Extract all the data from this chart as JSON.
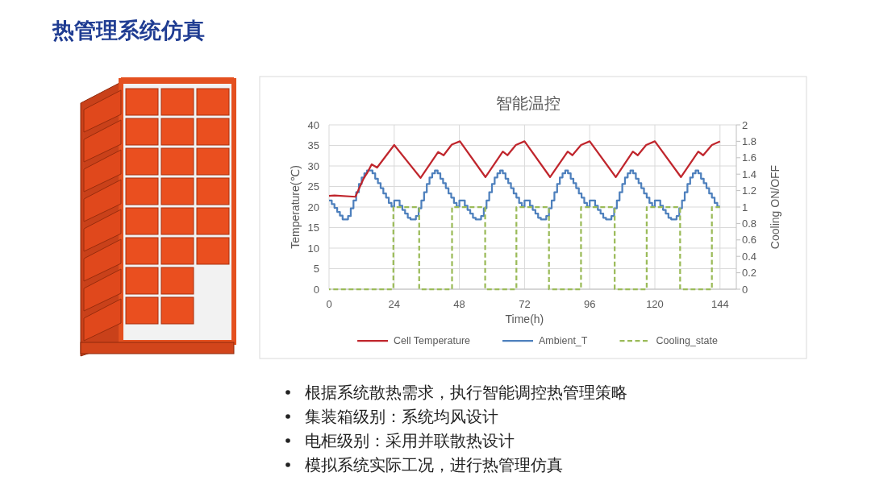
{
  "chart_data": {
    "type": "line",
    "title": "热管理系统仿真",
    "subtitle": "智能温控",
    "xlabel": "Time(h)",
    "ylabel": "Temperature(℃)",
    "y2label": "Cooling ON/OFF",
    "xlim": [
      0,
      150
    ],
    "xticks": [
      0,
      24,
      48,
      72,
      96,
      120,
      144
    ],
    "ylim": [
      0,
      40
    ],
    "yticks": [
      0,
      5,
      10,
      15,
      20,
      25,
      30,
      35,
      40
    ],
    "y2lim": [
      0,
      2
    ],
    "y2ticks": [
      0,
      0.2,
      0.4,
      0.6,
      0.8,
      1,
      1.2,
      1.4,
      1.6,
      1.8,
      2
    ],
    "grid": true,
    "legend": "bottom",
    "series": [
      {
        "name": "Cell Temperature",
        "color": "#c0262d",
        "type": "line",
        "x": [
          0,
          2,
          9.7,
          11.2,
          12.7,
          14.2,
          15.7,
          17.7,
          24,
          33.7,
          40.2,
          42.2,
          45.2,
          48.2,
          57.6,
          64.0,
          65.7,
          68.8,
          72,
          81.4,
          87.9,
          89.6,
          92.8,
          96,
          105.6,
          111.9,
          113.7,
          116.8,
          120,
          129.6,
          136.0,
          137.8,
          141.0,
          144
        ],
        "values": [
          22.7,
          22.8,
          22.5,
          24.7,
          26.9,
          28.5,
          30.4,
          29.6,
          35.1,
          27.1,
          33.4,
          32.6,
          35.2,
          36.0,
          27.3,
          33.5,
          32.6,
          35.1,
          36.0,
          27.3,
          33.5,
          32.6,
          35.1,
          36.0,
          27.3,
          33.5,
          32.6,
          35.1,
          36.0,
          27.3,
          33.5,
          32.6,
          35.1,
          36.0
        ]
      },
      {
        "name": "Ambient_T",
        "color": "#4e80bd",
        "type": "step",
        "x": [
          0,
          1,
          2,
          3,
          4,
          5,
          6,
          7,
          8,
          9,
          10,
          11,
          12,
          13,
          14,
          15,
          16,
          17,
          18,
          19,
          20,
          21,
          22,
          23,
          24,
          25,
          26,
          27,
          28,
          29,
          30,
          31,
          32,
          33,
          34,
          35,
          36,
          37,
          38,
          39,
          40,
          41,
          42,
          43,
          44,
          45,
          46,
          47,
          48,
          49,
          50,
          51,
          52,
          53,
          54,
          55,
          56,
          57,
          58,
          59,
          60,
          61,
          62,
          63,
          64,
          65,
          66,
          67,
          68,
          69,
          70,
          71,
          72,
          73,
          74,
          75,
          76,
          77,
          78,
          79,
          80,
          81,
          82,
          83,
          84,
          85,
          86,
          87,
          88,
          89,
          90,
          91,
          92,
          93,
          94,
          95,
          96,
          97,
          98,
          99,
          100,
          101,
          102,
          103,
          104,
          105,
          106,
          107,
          108,
          109,
          110,
          111,
          112,
          113,
          114,
          115,
          116,
          117,
          118,
          119,
          120,
          121,
          122,
          123,
          124,
          125,
          126,
          127,
          128,
          129,
          130,
          131,
          132,
          133,
          134,
          135,
          136,
          137,
          138,
          139,
          140,
          141,
          142,
          143,
          144
        ],
        "values": [
          21.6,
          20.7,
          19.8,
          18.8,
          17.9,
          17.0,
          17.0,
          17.8,
          19.7,
          21.6,
          23.6,
          25.6,
          27.2,
          28.2,
          28.9,
          28.9,
          28.2,
          26.9,
          25.8,
          24.6,
          23.3,
          22.3,
          21.0,
          20.1,
          21.6,
          21.6,
          20.3,
          19.3,
          18.4,
          17.4,
          17.0,
          17.0,
          17.8,
          19.7,
          21.6,
          23.6,
          25.6,
          27.2,
          28.2,
          28.9,
          28.2,
          26.9,
          25.8,
          24.6,
          23.3,
          22.3,
          21.0,
          20.1,
          21.6,
          21.6,
          20.3,
          19.3,
          18.4,
          17.4,
          17.0,
          17.0,
          17.8,
          19.7,
          21.6,
          23.6,
          25.6,
          27.2,
          28.2,
          28.9,
          28.2,
          26.9,
          25.8,
          24.6,
          23.3,
          22.3,
          21.0,
          20.1,
          21.6,
          21.6,
          20.3,
          19.3,
          18.4,
          17.4,
          17.0,
          17.0,
          17.8,
          19.7,
          21.6,
          23.6,
          25.6,
          27.2,
          28.2,
          28.9,
          28.2,
          26.9,
          25.8,
          24.6,
          23.3,
          22.3,
          21.0,
          20.1,
          21.6,
          21.6,
          20.3,
          19.3,
          18.4,
          17.4,
          17.0,
          17.0,
          17.8,
          19.7,
          21.6,
          23.6,
          25.6,
          27.2,
          28.2,
          28.9,
          28.2,
          26.9,
          25.8,
          24.6,
          23.3,
          22.3,
          21.0,
          20.1,
          21.6,
          21.6,
          20.3,
          19.3,
          18.4,
          17.4,
          17.0,
          17.0,
          17.8,
          19.7,
          21.6,
          23.6,
          25.6,
          27.2,
          28.2,
          28.9,
          28.2,
          26.9,
          25.8,
          24.6,
          23.3,
          22.3,
          21.0,
          20.1,
          20.1
        ]
      },
      {
        "name": "Cooling_state",
        "color": "#9bbb59",
        "type": "step",
        "axis": "y2",
        "line_style": "dashed",
        "x": [
          0,
          23.7,
          33.2,
          45.3,
          57.5,
          69.0,
          81.0,
          92.8,
          105.2,
          117.0,
          129.3,
          141.0,
          144
        ],
        "values": [
          0,
          1,
          0,
          1,
          0,
          1,
          0,
          1,
          0,
          1,
          0,
          1,
          1
        ]
      }
    ],
    "annotations": [
      "根据系统散热需求，执行智能调控热管理策略",
      "集装箱级别：系统均风设计",
      "电柜级别：采用并联散热设计",
      "模拟系统实际工况，进行热管理仿真"
    ]
  }
}
